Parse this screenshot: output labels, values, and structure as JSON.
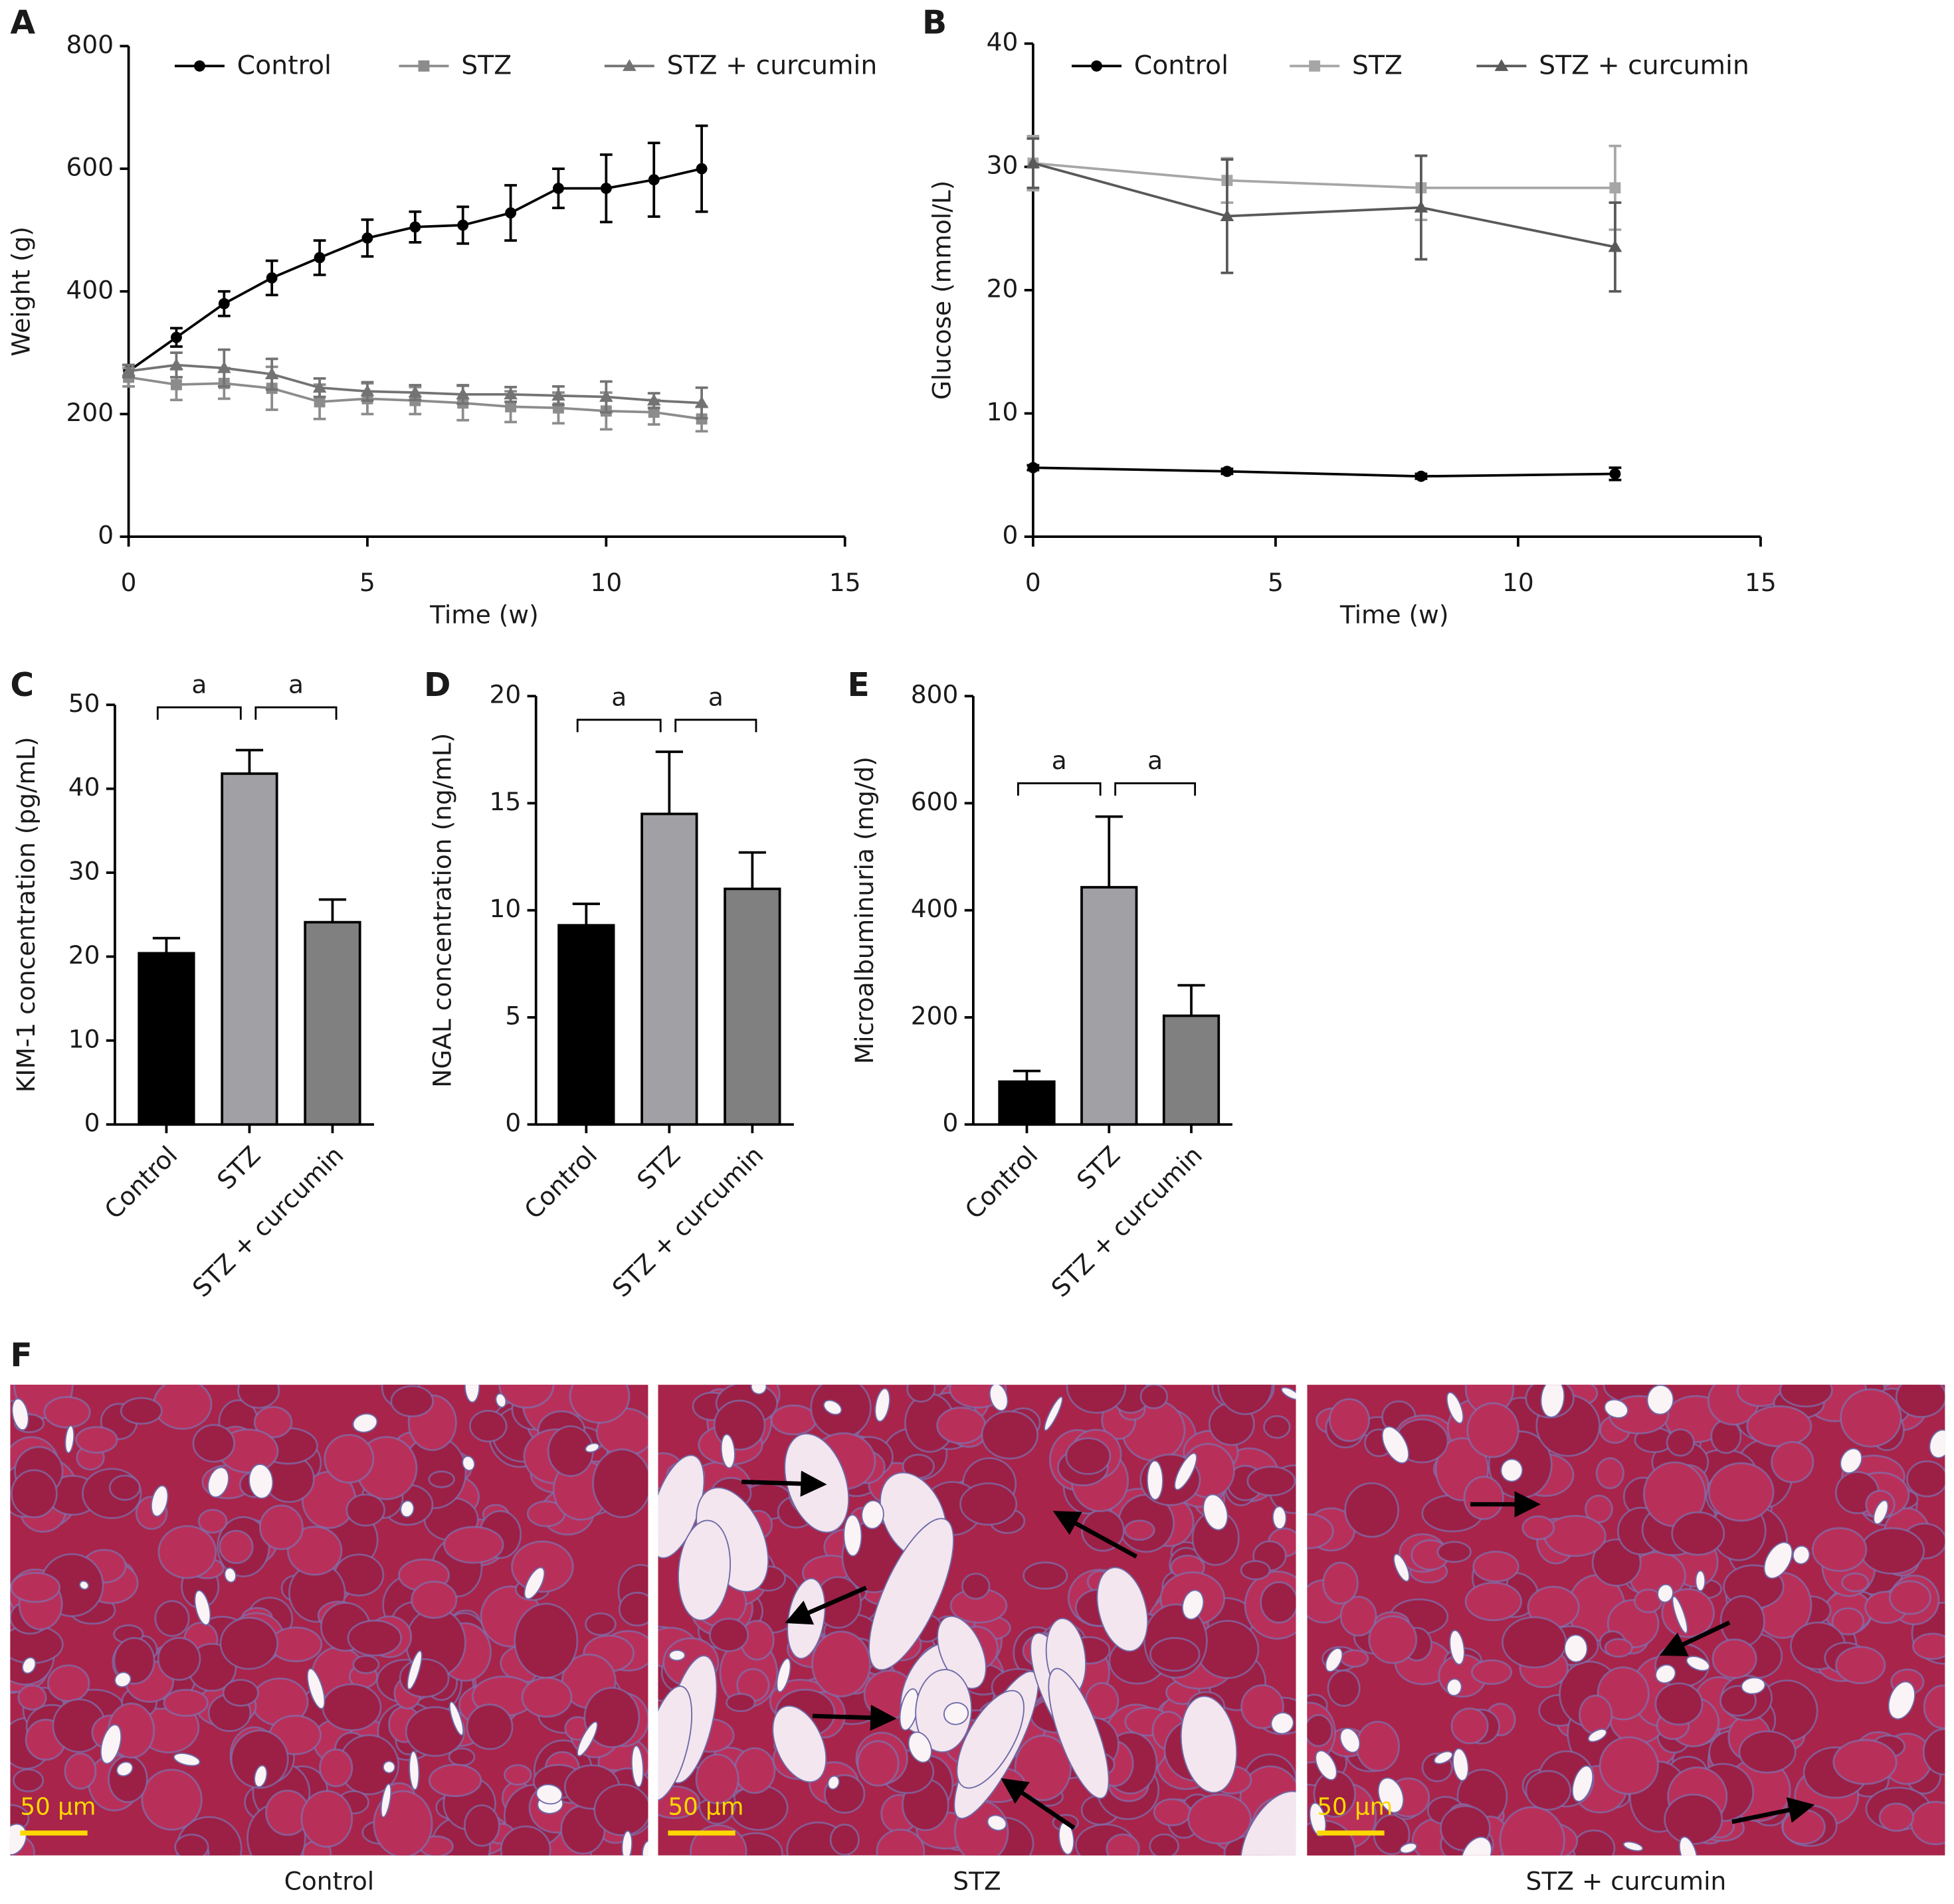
{
  "chart_data": [
    {
      "type": "line",
      "label": "A",
      "xlabel": "Time (w)",
      "ylabel": "Weight (g)",
      "x": [
        0,
        1,
        2,
        3,
        4,
        5,
        6,
        7,
        8,
        9,
        10,
        11,
        12
      ],
      "xlim": [
        0,
        15
      ],
      "xticks": [
        0,
        5,
        10,
        15
      ],
      "ylim": [
        0,
        800
      ],
      "yticks": [
        0,
        200,
        400,
        600,
        800
      ],
      "series": [
        {
          "name": "Control",
          "color": "#000000",
          "marker": "circle",
          "values": [
            270,
            325,
            380,
            422,
            455,
            487,
            505,
            508,
            528,
            568,
            568,
            582,
            600
          ],
          "errors": [
            10,
            15,
            20,
            28,
            28,
            30,
            25,
            30,
            45,
            32,
            55,
            60,
            70
          ]
        },
        {
          "name": "STZ",
          "color": "#8c8c8c",
          "marker": "square",
          "values": [
            260,
            248,
            250,
            242,
            220,
            225,
            222,
            218,
            212,
            210,
            205,
            203,
            192
          ],
          "errors": [
            15,
            25,
            25,
            35,
            28,
            25,
            22,
            28,
            25,
            25,
            30,
            20,
            20
          ]
        },
        {
          "name": "STZ + curcumin",
          "color": "#737373",
          "marker": "triangle",
          "values": [
            270,
            280,
            275,
            265,
            243,
            237,
            235,
            232,
            232,
            230,
            228,
            222,
            218
          ],
          "errors": [
            10,
            20,
            30,
            25,
            15,
            15,
            12,
            15,
            12,
            15,
            25,
            12,
            25
          ]
        }
      ]
    },
    {
      "type": "line",
      "label": "B",
      "xlabel": "Time (w)",
      "ylabel": "Glucose (mmol/L)",
      "x": [
        0,
        4,
        8,
        12
      ],
      "xlim": [
        0,
        15
      ],
      "xticks": [
        0,
        5,
        10,
        15
      ],
      "ylim": [
        0,
        40
      ],
      "yticks": [
        0,
        10,
        20,
        30,
        40
      ],
      "series": [
        {
          "name": "Control",
          "color": "#000000",
          "marker": "circle",
          "values": [
            5.6,
            5.3,
            4.9,
            5.1
          ],
          "errors": [
            0.2,
            0.2,
            0.2,
            0.5
          ]
        },
        {
          "name": "STZ",
          "color": "#a6a6a6",
          "marker": "square",
          "values": [
            30.3,
            28.9,
            28.3,
            28.3
          ],
          "errors": [
            2.2,
            1.8,
            2.6,
            3.4
          ]
        },
        {
          "name": "STZ + curcumin",
          "color": "#595959",
          "marker": "triangle",
          "values": [
            30.3,
            26.0,
            26.7,
            23.5
          ],
          "errors": [
            2.0,
            4.6,
            4.2,
            3.6
          ]
        }
      ]
    },
    {
      "type": "bar",
      "label": "C",
      "ylabel": "KIM-1 concentration (pg/mL)",
      "categories": [
        "Control",
        "STZ",
        "STZ + curcumin"
      ],
      "values": [
        20.4,
        41.8,
        24.1
      ],
      "errors": [
        1.8,
        2.8,
        2.7
      ],
      "colors": [
        "#000000",
        "#a0a0a5",
        "#808080"
      ],
      "ylim": [
        0,
        50
      ],
      "yticks": [
        0,
        10,
        20,
        30,
        40,
        50
      ],
      "annotations": [
        "a",
        "a"
      ]
    },
    {
      "type": "bar",
      "label": "D",
      "ylabel": "NGAL concentration (ng/mL)",
      "categories": [
        "Control",
        "STZ",
        "STZ + curcumin"
      ],
      "values": [
        9.3,
        14.5,
        11.0
      ],
      "errors": [
        1.0,
        2.9,
        1.7
      ],
      "colors": [
        "#000000",
        "#a0a0a5",
        "#808080"
      ],
      "ylim": [
        0,
        20
      ],
      "yticks": [
        0,
        5,
        10,
        15,
        20
      ],
      "annotations": [
        "a",
        "a"
      ]
    },
    {
      "type": "bar",
      "label": "E",
      "ylabel": "Microalbuminuria (mg/d)",
      "categories": [
        "Control",
        "STZ",
        "STZ + curcumin"
      ],
      "values": [
        80,
        443,
        203
      ],
      "errors": [
        20,
        132,
        57
      ],
      "colors": [
        "#000000",
        "#a0a0a5",
        "#808080"
      ],
      "ylim": [
        0,
        800
      ],
      "yticks": [
        0,
        200,
        400,
        600,
        800
      ],
      "annotations": [
        "a",
        "a"
      ]
    }
  ],
  "histology": {
    "label": "F",
    "panels": [
      {
        "caption": "Control",
        "scale_bar": "50 μm"
      },
      {
        "caption": "STZ",
        "scale_bar": "50 μm"
      },
      {
        "caption": "STZ + curcumin",
        "scale_bar": "50 μm"
      }
    ]
  }
}
